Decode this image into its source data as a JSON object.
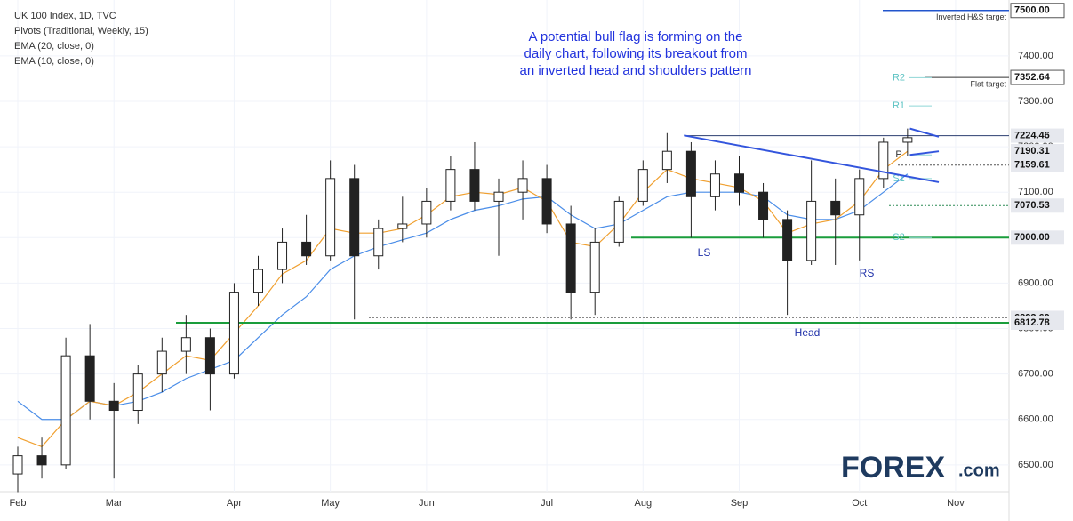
{
  "chart_data": {
    "type": "candlestick",
    "title": "UK 100 Index, 1D, TVC",
    "pivots_name": "Pivots (Traditional, Weekly, 15)",
    "annotation": "A potential bull flag is forming on the daily chart, following its breakout from an inverted head and shoulders pattern",
    "categories": [
      "Feb",
      null,
      null,
      null,
      "Mar",
      null,
      null,
      null,
      null,
      "Apr",
      null,
      null,
      null,
      "May",
      null,
      null,
      null,
      "Jun",
      null,
      null,
      null,
      null,
      "Jul",
      null,
      null,
      null,
      "Aug",
      null,
      null,
      null,
      "Sep",
      null,
      null,
      null,
      null,
      "Oct",
      null,
      null,
      null,
      "Nov",
      null
    ],
    "open": [
      6480,
      6520,
      6500,
      6740,
      6640,
      6620,
      6700,
      6750,
      6780,
      6700,
      6880,
      6930,
      6990,
      6960,
      7130,
      6960,
      7020,
      7030,
      7080,
      7150,
      7080,
      7100,
      7130,
      7030,
      6880,
      6990,
      7080,
      7150,
      7190,
      7090,
      7140,
      7100,
      7040,
      6950,
      7080,
      7050,
      7130,
      7210,
      null,
      null,
      null
    ],
    "high": [
      6540,
      6560,
      6780,
      6810,
      6680,
      6720,
      6780,
      6830,
      6800,
      6900,
      6960,
      7020,
      7050,
      7170,
      7160,
      7040,
      7090,
      7110,
      7180,
      7210,
      7130,
      7170,
      7160,
      7070,
      7020,
      7090,
      7170,
      7230,
      7210,
      7170,
      7180,
      7120,
      7060,
      7170,
      7130,
      7150,
      7220,
      7240,
      null,
      null,
      null
    ],
    "low": [
      6440,
      6470,
      6490,
      6600,
      6470,
      6590,
      6660,
      6700,
      6620,
      6690,
      6850,
      6900,
      6940,
      6950,
      6820,
      6930,
      6990,
      7000,
      7060,
      7060,
      6960,
      7040,
      7010,
      6820,
      6830,
      6980,
      7070,
      7120,
      7000,
      7060,
      7070,
      7000,
      6830,
      6940,
      6940,
      6950,
      7110,
      7180,
      null,
      null,
      null
    ],
    "close": [
      6520,
      6500,
      6740,
      6640,
      6620,
      6700,
      6750,
      6780,
      6700,
      6880,
      6930,
      6990,
      6960,
      7130,
      6960,
      7020,
      7030,
      7080,
      7150,
      7080,
      7100,
      7130,
      7030,
      6880,
      6990,
      7080,
      7150,
      7190,
      7090,
      7140,
      7100,
      7040,
      6950,
      7080,
      7050,
      7130,
      7210,
      7220,
      null,
      null,
      null
    ],
    "series": [
      {
        "name": "EMA (20, close, 0)",
        "color": "#4a8de8",
        "values": [
          6640,
          6600,
          6600,
          6640,
          6630,
          6640,
          6660,
          6690,
          6710,
          6730,
          6780,
          6830,
          6870,
          6930,
          6960,
          6980,
          6995,
          7010,
          7040,
          7060,
          7070,
          7085,
          7090,
          7050,
          7020,
          7030,
          7060,
          7090,
          7100,
          7100,
          7100,
          7090,
          7050,
          7040,
          7040,
          7060,
          7100,
          7140,
          null,
          null,
          null
        ]
      },
      {
        "name": "EMA (10, close, 0)",
        "color": "#f0a030",
        "values": [
          6560,
          6540,
          6600,
          6640,
          6630,
          6660,
          6700,
          6740,
          6730,
          6790,
          6850,
          6920,
          6950,
          7020,
          7010,
          7010,
          7020,
          7050,
          7090,
          7100,
          7095,
          7110,
          7080,
          6990,
          6980,
          7030,
          7100,
          7150,
          7130,
          7120,
          7110,
          7080,
          7010,
          7030,
          7040,
          7080,
          7150,
          7190,
          null,
          null,
          null
        ]
      }
    ],
    "levels": [
      {
        "value": 7500,
        "label": "7500.00",
        "color": "#2255cc",
        "note": "Inverted H&S target"
      },
      {
        "value": 7352.64,
        "label": "7352.64",
        "color": "#333333",
        "note": "Flat target"
      },
      {
        "value": 7224.46,
        "label": "7224.46",
        "color": "#2c3e70"
      },
      {
        "value": 7190.31,
        "label": "7190.31",
        "color": "#999999"
      },
      {
        "value": 7159.61,
        "label": "7159.61",
        "color": "#555555"
      },
      {
        "value": 7070.53,
        "label": "7070.53",
        "color": "#2e8b57"
      },
      {
        "value": 7000,
        "label": "7000.00",
        "color": "#1a9d3c"
      },
      {
        "value": 6823.6,
        "label": "6823.60",
        "color": "#888888"
      },
      {
        "value": 6812.78,
        "label": "6812.78",
        "color": "#1a9d3c"
      }
    ],
    "pivot_levels": [
      {
        "name": "R2",
        "value": 7352
      },
      {
        "name": "R1",
        "value": 7290
      },
      {
        "name": "P",
        "value": 7182
      },
      {
        "name": "S1",
        "value": 7130
      },
      {
        "name": "S2",
        "value": 7000
      }
    ],
    "patterns": [
      {
        "name": "LS"
      },
      {
        "name": "Head"
      },
      {
        "name": "RS"
      }
    ],
    "trendlines": [
      {
        "color": "#3355dd",
        "points": [
          [
            27.7,
            7225
          ],
          [
            38.3,
            7122
          ]
        ]
      },
      {
        "color": "#3355dd",
        "points": [
          [
            37.1,
            7240
          ],
          [
            38.3,
            7222
          ]
        ]
      },
      {
        "color": "#3355dd",
        "points": [
          [
            37.1,
            7182
          ],
          [
            38.3,
            7190
          ]
        ]
      }
    ],
    "ylim": [
      6441,
      7523
    ],
    "yticks": [
      {
        "value": 6500,
        "label": "6500.00"
      },
      {
        "value": 6600,
        "label": "6600.00"
      },
      {
        "value": 6700,
        "label": "6700.00"
      },
      {
        "value": 6800,
        "label": "6800.00"
      },
      {
        "value": 6900,
        "label": "6900.00"
      },
      {
        "value": 7000,
        "label": "7000.00"
      },
      {
        "value": 7100,
        "label": "7100.00"
      },
      {
        "value": 7200,
        "label": "7200.00"
      },
      {
        "value": 7300,
        "label": "7300.00"
      },
      {
        "value": 7400,
        "label": "7400.00"
      }
    ],
    "logo": "FOREX",
    "logo_suffix": ".com"
  }
}
